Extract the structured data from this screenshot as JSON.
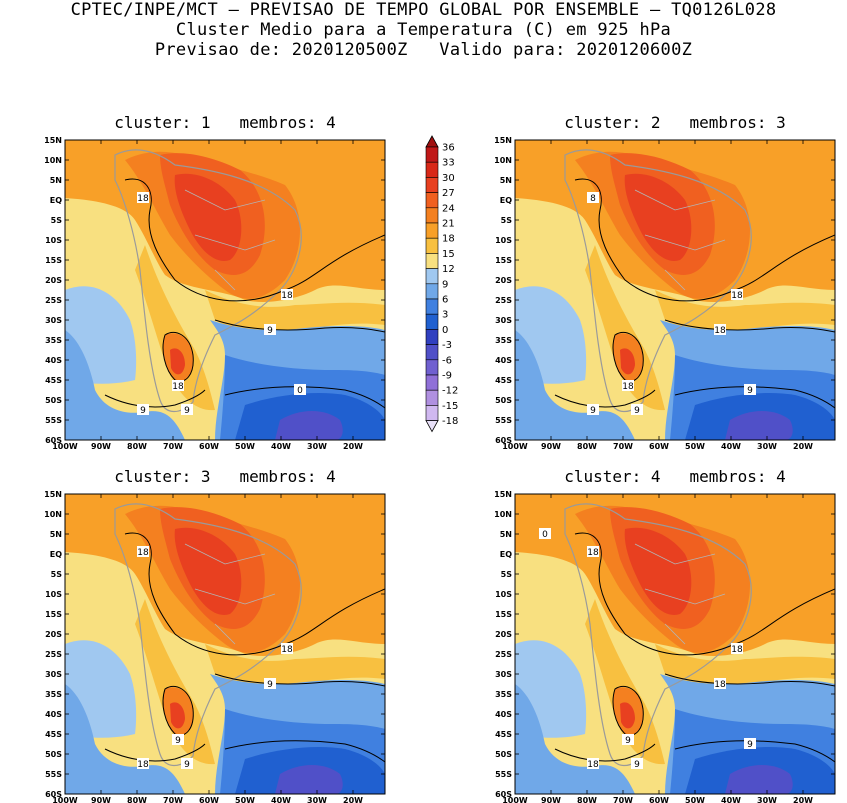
{
  "title": {
    "line1": "CPTEC/INPE/MCT — PREVISAO DE TEMPO GLOBAL POR ENSEMBLE — TQ0126L028",
    "line2": "Cluster Medio para a Temperatura (C) em 925 hPa",
    "line3": "Previsao de: 2020120500Z   Valido para: 2020120600Z"
  },
  "colorbar": {
    "levels": [
      "36",
      "33",
      "30",
      "27",
      "24",
      "21",
      "18",
      "15",
      "12",
      "9",
      "6",
      "3",
      "0",
      "-3",
      "-6",
      "-9",
      "-12",
      "-15",
      "-18"
    ],
    "colors": [
      "#a01010",
      "#c01818",
      "#d82818",
      "#e84020",
      "#f06020",
      "#f48020",
      "#f8a028",
      "#f8c040",
      "#f8e080",
      "#a0c8f0",
      "#70a8e8",
      "#4080e0",
      "#2060d0",
      "#3040c0",
      "#5050c8",
      "#7060d0",
      "#9070d8",
      "#b090e0",
      "#d0b8f0"
    ]
  },
  "axes": {
    "lat_labels": [
      "15N",
      "10N",
      "5N",
      "EQ",
      "5S",
      "10S",
      "15S",
      "20S",
      "25S",
      "30S",
      "35S",
      "40S",
      "45S",
      "50S",
      "55S",
      "60S"
    ],
    "lon_labels": [
      "100W",
      "90W",
      "80W",
      "70W",
      "60W",
      "50W",
      "40W",
      "30W",
      "20W"
    ]
  },
  "panels": [
    {
      "cluster": "1",
      "membros": "4",
      "title": "cluster: 1   membros: 4",
      "contour_labels": [
        "18",
        "18",
        "9",
        "18",
        "9",
        "9",
        "0"
      ]
    },
    {
      "cluster": "2",
      "membros": "3",
      "title": "cluster: 2   membros: 3",
      "contour_labels": [
        "8",
        "18",
        "18",
        "18",
        "9",
        "9",
        "9"
      ]
    },
    {
      "cluster": "3",
      "membros": "4",
      "title": "cluster: 3   membros: 4",
      "contour_labels": [
        "18",
        "18",
        "9",
        "9",
        "18",
        "9"
      ]
    },
    {
      "cluster": "4",
      "membros": "4",
      "title": "cluster: 4   membros: 4",
      "contour_labels": [
        "18",
        "18",
        "18",
        "9",
        "18",
        "9",
        "9",
        "0"
      ]
    }
  ]
}
